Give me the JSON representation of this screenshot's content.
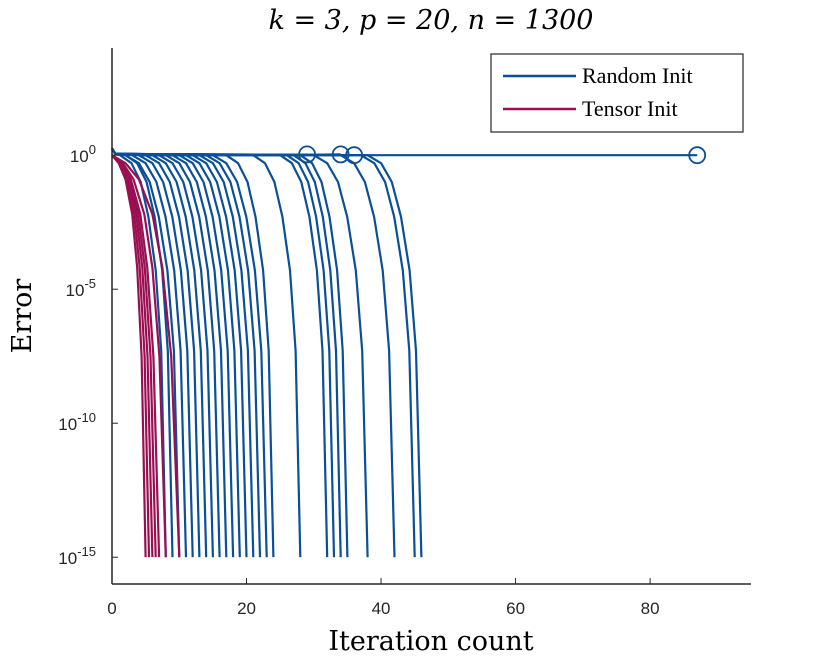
{
  "chart_data": {
    "type": "line",
    "title": "k = 3, p = 20, n = 1300",
    "xlabel": "Iteration count",
    "ylabel": "Error",
    "y_scale": "log",
    "xlim": [
      0,
      95
    ],
    "ylim_log10": [
      -16,
      4
    ],
    "xticks": [
      0,
      20,
      40,
      60,
      80
    ],
    "yticks": [
      {
        "base": "10",
        "exp": "0",
        "value": 0
      },
      {
        "base": "10",
        "exp": "-5",
        "value": -5
      },
      {
        "base": "10",
        "exp": "-10",
        "value": -10
      },
      {
        "base": "10",
        "exp": "-15",
        "value": -15
      }
    ],
    "legend": {
      "placement": "top-right",
      "entries": [
        {
          "name": "Random Init",
          "color": "#0a4f98"
        },
        {
          "name": "Tensor Init",
          "color": "#9a0f52"
        }
      ]
    },
    "series": [
      {
        "name": "Random Init",
        "color": "#0a4f98",
        "runs": [
          {
            "plateau": 1,
            "end": 8
          },
          {
            "plateau": 2,
            "end": 9
          },
          {
            "plateau": 2,
            "end": 10
          },
          {
            "plateau": 3,
            "end": 11
          },
          {
            "plateau": 4,
            "end": 12
          },
          {
            "plateau": 5,
            "end": 13
          },
          {
            "plateau": 6,
            "end": 14
          },
          {
            "plateau": 7,
            "end": 15
          },
          {
            "plateau": 8,
            "end": 16
          },
          {
            "plateau": 9,
            "end": 17
          },
          {
            "plateau": 10,
            "end": 18
          },
          {
            "plateau": 11,
            "end": 19
          },
          {
            "plateau": 12,
            "end": 20
          },
          {
            "plateau": 13,
            "end": 21
          },
          {
            "plateau": 14,
            "end": 22
          },
          {
            "plateau": 15,
            "end": 23
          },
          {
            "plateau": 17,
            "end": 24
          },
          {
            "plateau": 21,
            "end": 28
          },
          {
            "plateau": 25,
            "end": 32
          },
          {
            "plateau": 26,
            "end": 33
          },
          {
            "plateau": 27,
            "end": 34
          },
          {
            "plateau": 28,
            "end": 35
          },
          {
            "plateau": 30,
            "end": 38
          },
          {
            "plateau": 34,
            "end": 42
          },
          {
            "plateau": 37,
            "end": 45
          },
          {
            "plateau": 38,
            "end": 46
          }
        ],
        "stalled": [
          {
            "x": 29,
            "y": 0.03
          },
          {
            "x": 34,
            "y": 0.03
          },
          {
            "x": 36,
            "y": 0.0
          },
          {
            "x": 87,
            "y": 0.0
          }
        ]
      },
      {
        "name": "Tensor Init",
        "color": "#9a0f52",
        "ends": [
          5,
          5.5,
          6,
          6.5,
          7,
          8,
          10
        ]
      }
    ]
  }
}
